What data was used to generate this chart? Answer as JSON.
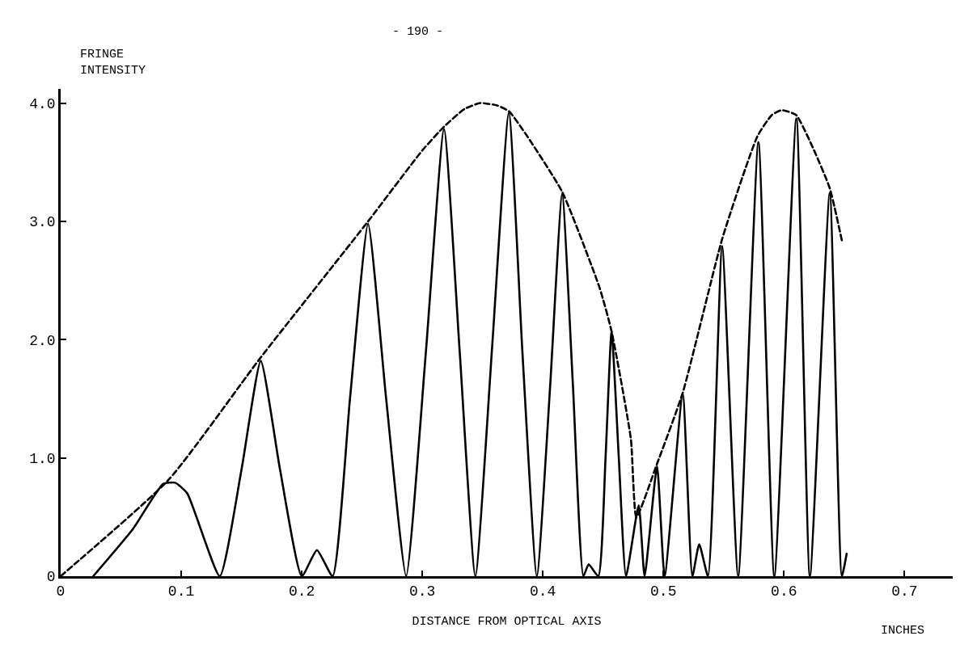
{
  "chart_data": {
    "type": "line",
    "ylabel": "FRINGE\nINTENSITY",
    "xlabel": "DISTANCE FROM OPTICAL AXIS",
    "annotations": [
      "- 190 -",
      "INCHES"
    ],
    "xlim": [
      0,
      0.74
    ],
    "ylim": [
      0,
      4.12
    ],
    "xticks": [
      {
        "value": 0,
        "label": "0"
      },
      0.1,
      0.2,
      0.3,
      0.4,
      0.5,
      0.6,
      0.7
    ],
    "yticks": [
      {
        "value": 0,
        "label": "0"
      },
      {
        "value": 1,
        "label": "1.0"
      },
      {
        "value": 2,
        "label": "2.0"
      },
      {
        "value": 3,
        "label": "3.0"
      },
      {
        "value": 4,
        "label": "4.0"
      }
    ],
    "marker": "none",
    "series": [
      {
        "color": "#000000",
        "line_style": "solid",
        "x": [
          0.027,
          0.06,
          0.085,
          0.095,
          0.105,
          0.132,
          0.15,
          0.166,
          0.182,
          0.2,
          0.2126,
          0.2256,
          0.24,
          0.255,
          0.27,
          0.2866,
          0.303,
          0.318,
          0.331,
          0.344,
          0.358,
          0.3718,
          0.383,
          0.395,
          0.406,
          0.416,
          0.425,
          0.4336,
          0.438,
          0.446,
          0.452,
          0.457,
          0.463,
          0.469,
          0.4795,
          0.4844,
          0.4947,
          0.501,
          0.516,
          0.524,
          0.5297,
          0.537,
          0.5487,
          0.562,
          0.5788,
          0.592,
          0.6103,
          0.6215,
          0.638,
          0.648,
          0.652
        ],
        "values": [
          0,
          0.4,
          0.78,
          0.79,
          0.7,
          0,
          0.9,
          1.82,
          0.9,
          0,
          0.22,
          0,
          1.5,
          2.98,
          1.5,
          0,
          1.9,
          3.78,
          1.9,
          0,
          1.95,
          3.92,
          1.9,
          0,
          1.6,
          3.23,
          1.6,
          0,
          0.1,
          0,
          1.0,
          2.07,
          1.0,
          0,
          0.6,
          0,
          0.93,
          0,
          1.54,
          0,
          0.27,
          0,
          2.79,
          0,
          3.67,
          0,
          3.87,
          0,
          3.24,
          0,
          0.19
        ]
      },
      {
        "color": "#000000",
        "line_style": "dashed",
        "x": [
          0,
          0.09,
          0.166,
          0.255,
          0.3,
          0.318,
          0.335,
          0.348,
          0.362,
          0.372,
          0.387,
          0.416,
          0.447,
          0.457,
          0.473,
          0.4776,
          0.4947,
          0.516,
          0.549,
          0.578,
          0.59,
          0.598,
          0.61,
          0.625,
          0.638,
          0.648
        ],
        "values": [
          0,
          0.82,
          1.85,
          3.0,
          3.6,
          3.8,
          3.95,
          4.0,
          3.98,
          3.93,
          3.72,
          3.25,
          2.44,
          2.07,
          1.16,
          0.5,
          0.95,
          1.55,
          2.86,
          3.72,
          3.9,
          3.94,
          3.9,
          3.6,
          3.28,
          2.84
        ]
      }
    ]
  }
}
